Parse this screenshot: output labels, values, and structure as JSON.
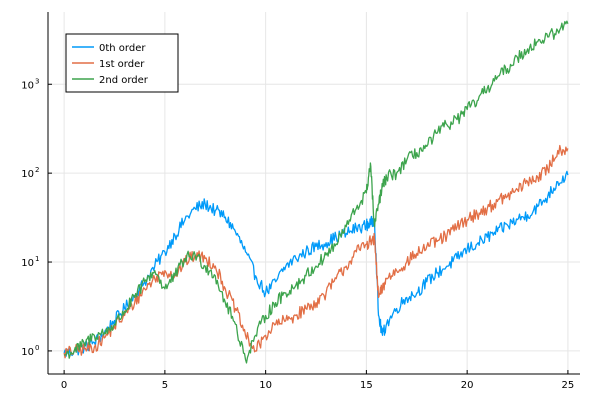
{
  "chart_data": {
    "type": "line",
    "title": "",
    "xlabel": "",
    "ylabel": "",
    "xlim": [
      -0.8,
      25.6
    ],
    "ylim": [
      0.55,
      6500
    ],
    "y_scale": "log",
    "grid": true,
    "legend_placement": "top-left",
    "x_ticks": [
      {
        "value": 0,
        "label": "0"
      },
      {
        "value": 5,
        "label": "5"
      },
      {
        "value": 10,
        "label": "10"
      },
      {
        "value": 15,
        "label": "15"
      },
      {
        "value": 20,
        "label": "20"
      },
      {
        "value": 25,
        "label": "25"
      }
    ],
    "y_ticks": [
      {
        "value": 1,
        "base": "10",
        "exp": "0"
      },
      {
        "value": 10,
        "base": "10",
        "exp": "1"
      },
      {
        "value": 100,
        "base": "10",
        "exp": "2"
      },
      {
        "value": 1000,
        "base": "10",
        "exp": "3"
      }
    ],
    "series": [
      {
        "name": "0th order",
        "color": "#009af9",
        "x": [
          0,
          0.5,
          1,
          1.5,
          2,
          2.5,
          3,
          3.5,
          4,
          4.5,
          5,
          5.5,
          6,
          6.5,
          7,
          7.5,
          8,
          8.5,
          9,
          9.5,
          10,
          10.5,
          11,
          11.5,
          12,
          12.5,
          13,
          13.5,
          14,
          14.5,
          15,
          15.2,
          15.4,
          15.6,
          15.8,
          16,
          16.5,
          17,
          17.5,
          18,
          18.5,
          19,
          19.5,
          20,
          20.5,
          21,
          21.5,
          22,
          22.5,
          23,
          23.5,
          24,
          24.5,
          25
        ],
        "y": [
          0.95,
          1.0,
          1.1,
          1.25,
          1.6,
          2.2,
          3.0,
          4.2,
          6.0,
          9.0,
          13.0,
          20.0,
          30.0,
          40.0,
          45.0,
          38.0,
          32.0,
          22.0,
          13.0,
          7.0,
          4.5,
          6.0,
          9.0,
          11.0,
          13.0,
          15.0,
          16.5,
          19.0,
          21.0,
          24.0,
          26.0,
          27.0,
          30.0,
          2.5,
          1.5,
          2.0,
          3.0,
          4.0,
          4.5,
          6.0,
          7.5,
          9.0,
          11.0,
          14.0,
          16.0,
          19.0,
          22.0,
          26.0,
          30.0,
          34.0,
          42.0,
          55.0,
          80.0,
          95.0
        ]
      },
      {
        "name": "1st order",
        "color": "#e26f46",
        "x": [
          0,
          0.5,
          1,
          1.5,
          2,
          2.5,
          3,
          3.5,
          4,
          4.5,
          5,
          5.5,
          6,
          6.5,
          7,
          7.5,
          8,
          8.5,
          9,
          9.5,
          10,
          10.5,
          11,
          11.5,
          12,
          12.5,
          13,
          13.5,
          14,
          14.5,
          15,
          15.2,
          15.4,
          15.6,
          15.8,
          16,
          16.5,
          17,
          17.5,
          18,
          18.5,
          19,
          19.5,
          20,
          20.5,
          21,
          21.5,
          22,
          22.5,
          23,
          23.5,
          24,
          24.5,
          25
        ],
        "y": [
          0.95,
          1.0,
          1.05,
          1.1,
          1.4,
          1.9,
          2.5,
          3.5,
          5.0,
          6.5,
          8.0,
          7.0,
          10.0,
          12.0,
          11.0,
          9.0,
          5.0,
          3.0,
          1.5,
          1.0,
          1.5,
          2.0,
          2.2,
          2.5,
          3.0,
          3.5,
          4.5,
          6.5,
          9.0,
          13.0,
          16.0,
          17.0,
          18.0,
          4.0,
          5.0,
          6.5,
          8.0,
          10.0,
          12.5,
          15.0,
          17.0,
          20.0,
          25.0,
          30.0,
          35.0,
          40.0,
          48.0,
          55.0,
          65.0,
          80.0,
          90.0,
          110.0,
          180.0,
          190.0
        ]
      },
      {
        "name": "2nd order",
        "color": "#3da44d",
        "x": [
          0,
          0.5,
          1,
          1.5,
          2,
          2.5,
          3,
          3.5,
          4,
          4.5,
          5,
          5.5,
          6,
          6.5,
          7,
          7.5,
          8,
          8.5,
          9,
          9.5,
          10,
          10.5,
          11,
          11.5,
          12,
          12.5,
          13,
          13.5,
          14,
          14.5,
          15,
          15.2,
          15.4,
          15.6,
          15.8,
          16,
          16.5,
          17,
          17.5,
          18,
          18.5,
          19,
          19.5,
          20,
          20.5,
          21,
          21.5,
          22,
          22.5,
          23,
          23.5,
          24,
          24.5,
          25
        ],
        "y": [
          0.9,
          1.0,
          1.2,
          1.5,
          1.6,
          2.0,
          2.8,
          4.0,
          6.0,
          8.0,
          5.0,
          7.0,
          11.0,
          12.0,
          9.0,
          7.0,
          3.5,
          2.0,
          0.8,
          1.5,
          2.5,
          3.5,
          4.5,
          5.5,
          7.0,
          9.0,
          12.0,
          16.0,
          25.0,
          40.0,
          60.0,
          130.0,
          25.0,
          45.0,
          70.0,
          90.0,
          100.0,
          140.0,
          170.0,
          200.0,
          280.0,
          350.0,
          400.0,
          520.0,
          650.0,
          900.0,
          1200.0,
          1500.0,
          2000.0,
          2500.0,
          3000.0,
          3400.0,
          4000.0,
          4800.0
        ]
      }
    ]
  }
}
